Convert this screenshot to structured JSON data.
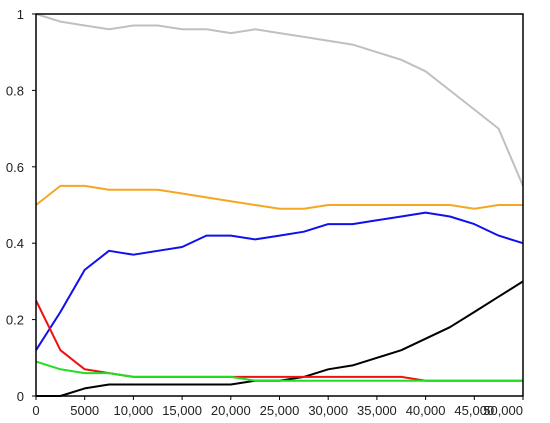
{
  "chart_data": {
    "type": "line",
    "title": "",
    "xlabel": "",
    "ylabel": "",
    "xlim": [
      0,
      50000
    ],
    "ylim": [
      0,
      1
    ],
    "x_ticks": [
      "0",
      "5000",
      "10,000",
      "15,000",
      "20,000",
      "25,000",
      "30,000",
      "35,000",
      "40,000",
      "45,000",
      "50,000"
    ],
    "y_ticks": [
      "0",
      "0.2",
      "0.4",
      "0.6",
      "0.8",
      "1"
    ],
    "grid": false,
    "legend": "none",
    "series": [
      {
        "color": "#c0c0c0",
        "x": [
          0,
          2500,
          5000,
          7500,
          10000,
          12500,
          15000,
          17500,
          20000,
          22500,
          25000,
          27500,
          30000,
          32500,
          35000,
          37500,
          40000,
          42500,
          45000,
          47500,
          50000
        ],
        "values": [
          1.0,
          0.98,
          0.97,
          0.96,
          0.97,
          0.97,
          0.96,
          0.96,
          0.95,
          0.96,
          0.95,
          0.94,
          0.93,
          0.92,
          0.9,
          0.88,
          0.85,
          0.8,
          0.75,
          0.7,
          0.55
        ]
      },
      {
        "color": "#f5a623",
        "x": [
          0,
          2500,
          5000,
          7500,
          10000,
          12500,
          15000,
          17500,
          20000,
          22500,
          25000,
          27500,
          30000,
          32500,
          35000,
          37500,
          40000,
          42500,
          45000,
          47500,
          50000
        ],
        "values": [
          0.5,
          0.55,
          0.55,
          0.54,
          0.54,
          0.54,
          0.53,
          0.52,
          0.51,
          0.5,
          0.49,
          0.49,
          0.5,
          0.5,
          0.5,
          0.5,
          0.5,
          0.5,
          0.49,
          0.5,
          0.5
        ]
      },
      {
        "color": "#1010ee",
        "x": [
          0,
          2500,
          5000,
          7500,
          10000,
          12500,
          15000,
          17500,
          20000,
          22500,
          25000,
          27500,
          30000,
          32500,
          35000,
          37500,
          40000,
          42500,
          45000,
          47500,
          50000
        ],
        "values": [
          0.12,
          0.22,
          0.33,
          0.38,
          0.37,
          0.38,
          0.39,
          0.42,
          0.42,
          0.41,
          0.42,
          0.43,
          0.45,
          0.45,
          0.46,
          0.47,
          0.48,
          0.47,
          0.45,
          0.42,
          0.4
        ]
      },
      {
        "color": "#000000",
        "x": [
          0,
          2500,
          5000,
          7500,
          10000,
          12500,
          15000,
          17500,
          20000,
          22500,
          25000,
          27500,
          30000,
          32500,
          35000,
          37500,
          40000,
          42500,
          45000,
          47500,
          50000
        ],
        "values": [
          0.0,
          0.0,
          0.02,
          0.03,
          0.03,
          0.03,
          0.03,
          0.03,
          0.03,
          0.04,
          0.04,
          0.05,
          0.07,
          0.08,
          0.1,
          0.12,
          0.15,
          0.18,
          0.22,
          0.26,
          0.3
        ]
      },
      {
        "color": "#ee1111",
        "x": [
          0,
          2500,
          5000,
          7500,
          10000,
          12500,
          15000,
          17500,
          20000,
          22500,
          25000,
          27500,
          30000,
          32500,
          35000,
          37500,
          40000,
          42500,
          45000,
          47500,
          50000
        ],
        "values": [
          0.25,
          0.12,
          0.07,
          0.06,
          0.05,
          0.05,
          0.05,
          0.05,
          0.05,
          0.05,
          0.05,
          0.05,
          0.05,
          0.05,
          0.05,
          0.05,
          0.04,
          0.04,
          0.04,
          0.04,
          0.04
        ]
      },
      {
        "color": "#22dd22",
        "x": [
          0,
          2500,
          5000,
          7500,
          10000,
          12500,
          15000,
          17500,
          20000,
          22500,
          25000,
          27500,
          30000,
          32500,
          35000,
          37500,
          40000,
          42500,
          45000,
          47500,
          50000
        ],
        "values": [
          0.09,
          0.07,
          0.06,
          0.06,
          0.05,
          0.05,
          0.05,
          0.05,
          0.05,
          0.04,
          0.04,
          0.04,
          0.04,
          0.04,
          0.04,
          0.04,
          0.04,
          0.04,
          0.04,
          0.04,
          0.04
        ]
      }
    ]
  }
}
